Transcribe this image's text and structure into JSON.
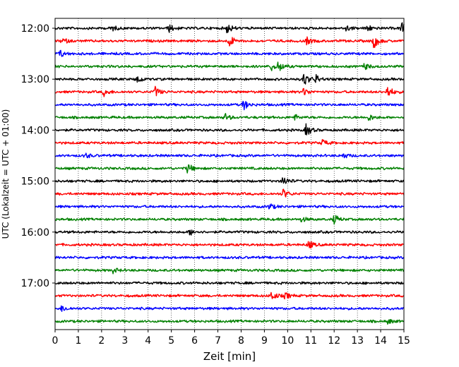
{
  "chart_data": {
    "type": "line",
    "title": "",
    "xlabel": "Zeit  [min]",
    "ylabel": "UTC (Lokalzeit = UTC + 01:00)",
    "xlim": [
      0,
      15
    ],
    "x_ticks": [
      "0",
      "1",
      "2",
      "3",
      "4",
      "5",
      "6",
      "7",
      "8",
      "9",
      "10",
      "11",
      "12",
      "13",
      "14",
      "15"
    ],
    "y_tick_labels": [
      "12:00",
      "13:00",
      "14:00",
      "15:00",
      "16:00",
      "17:00"
    ],
    "grid": "vertical dotted lines at each minute",
    "series_colors": [
      "#000000",
      "#ff0000",
      "#0000ff",
      "#008000"
    ],
    "rows": [
      {
        "start": "12:00",
        "color": "#000000",
        "events": [
          {
            "t": 2.4,
            "a": 0.5
          },
          {
            "t": 4.9,
            "a": 0.6
          },
          {
            "t": 7.4,
            "a": 0.8
          },
          {
            "t": 12.5,
            "a": 0.5
          },
          {
            "t": 13.4,
            "a": 0.6
          },
          {
            "t": 14.9,
            "a": 1.0
          }
        ]
      },
      {
        "start": "12:15",
        "color": "#ff0000",
        "events": [
          {
            "t": 0.3,
            "a": 0.5
          },
          {
            "t": 7.5,
            "a": 0.9
          },
          {
            "t": 10.8,
            "a": 0.6
          },
          {
            "t": 13.7,
            "a": 1.2
          }
        ]
      },
      {
        "start": "12:30",
        "color": "#0000ff",
        "events": [
          {
            "t": 0.2,
            "a": 0.6
          }
        ]
      },
      {
        "start": "12:45",
        "color": "#008000",
        "events": [
          {
            "t": 9.3,
            "a": 0.6
          },
          {
            "t": 9.6,
            "a": 0.9
          },
          {
            "t": 13.3,
            "a": 0.5
          }
        ]
      },
      {
        "start": "13:00",
        "color": "#000000",
        "events": [
          {
            "t": 3.5,
            "a": 0.7
          },
          {
            "t": 10.7,
            "a": 1.1
          },
          {
            "t": 11.2,
            "a": 0.7
          }
        ]
      },
      {
        "start": "13:15",
        "color": "#ff0000",
        "events": [
          {
            "t": 2.1,
            "a": 0.6
          },
          {
            "t": 4.3,
            "a": 0.8
          },
          {
            "t": 10.7,
            "a": 0.6
          },
          {
            "t": 14.3,
            "a": 1.0
          }
        ]
      },
      {
        "start": "13:30",
        "color": "#0000ff",
        "events": [
          {
            "t": 8.1,
            "a": 0.8
          }
        ]
      },
      {
        "start": "13:45",
        "color": "#008000",
        "events": [
          {
            "t": 7.3,
            "a": 0.6
          },
          {
            "t": 10.3,
            "a": 0.4
          },
          {
            "t": 13.5,
            "a": 0.5
          }
        ]
      },
      {
        "start": "14:00",
        "color": "#000000",
        "events": [
          {
            "t": 10.8,
            "a": 1.0
          }
        ]
      },
      {
        "start": "14:15",
        "color": "#ff0000",
        "events": [
          {
            "t": 11.5,
            "a": 0.5
          }
        ]
      },
      {
        "start": "14:30",
        "color": "#0000ff",
        "events": [
          {
            "t": 1.3,
            "a": 0.4
          },
          {
            "t": 12.4,
            "a": 0.4
          }
        ]
      },
      {
        "start": "14:45",
        "color": "#008000",
        "events": [
          {
            "t": 5.7,
            "a": 0.8
          }
        ]
      },
      {
        "start": "15:00",
        "color": "#000000",
        "events": [
          {
            "t": 9.8,
            "a": 0.8
          }
        ]
      },
      {
        "start": "15:15",
        "color": "#ff0000",
        "events": [
          {
            "t": 9.8,
            "a": 0.8
          }
        ]
      },
      {
        "start": "15:30",
        "color": "#0000ff",
        "events": [
          {
            "t": 9.2,
            "a": 0.5
          }
        ]
      },
      {
        "start": "15:45",
        "color": "#008000",
        "events": [
          {
            "t": 10.6,
            "a": 0.4
          },
          {
            "t": 12.0,
            "a": 0.7
          }
        ]
      },
      {
        "start": "16:00",
        "color": "#000000",
        "events": [
          {
            "t": 5.8,
            "a": 0.5
          }
        ]
      },
      {
        "start": "16:15",
        "color": "#ff0000",
        "events": [
          {
            "t": 10.9,
            "a": 0.7
          }
        ]
      },
      {
        "start": "16:30",
        "color": "#0000ff",
        "events": []
      },
      {
        "start": "16:45",
        "color": "#008000",
        "events": [
          {
            "t": 2.5,
            "a": 0.4
          }
        ]
      },
      {
        "start": "17:00",
        "color": "#000000",
        "events": []
      },
      {
        "start": "17:15",
        "color": "#ff0000",
        "events": [
          {
            "t": 9.3,
            "a": 0.8
          },
          {
            "t": 9.9,
            "a": 0.5
          }
        ]
      },
      {
        "start": "17:30",
        "color": "#0000ff",
        "events": [
          {
            "t": 0.3,
            "a": 0.5
          }
        ]
      },
      {
        "start": "17:45",
        "color": "#008000",
        "events": [
          {
            "t": 14.3,
            "a": 0.4
          }
        ]
      }
    ]
  }
}
